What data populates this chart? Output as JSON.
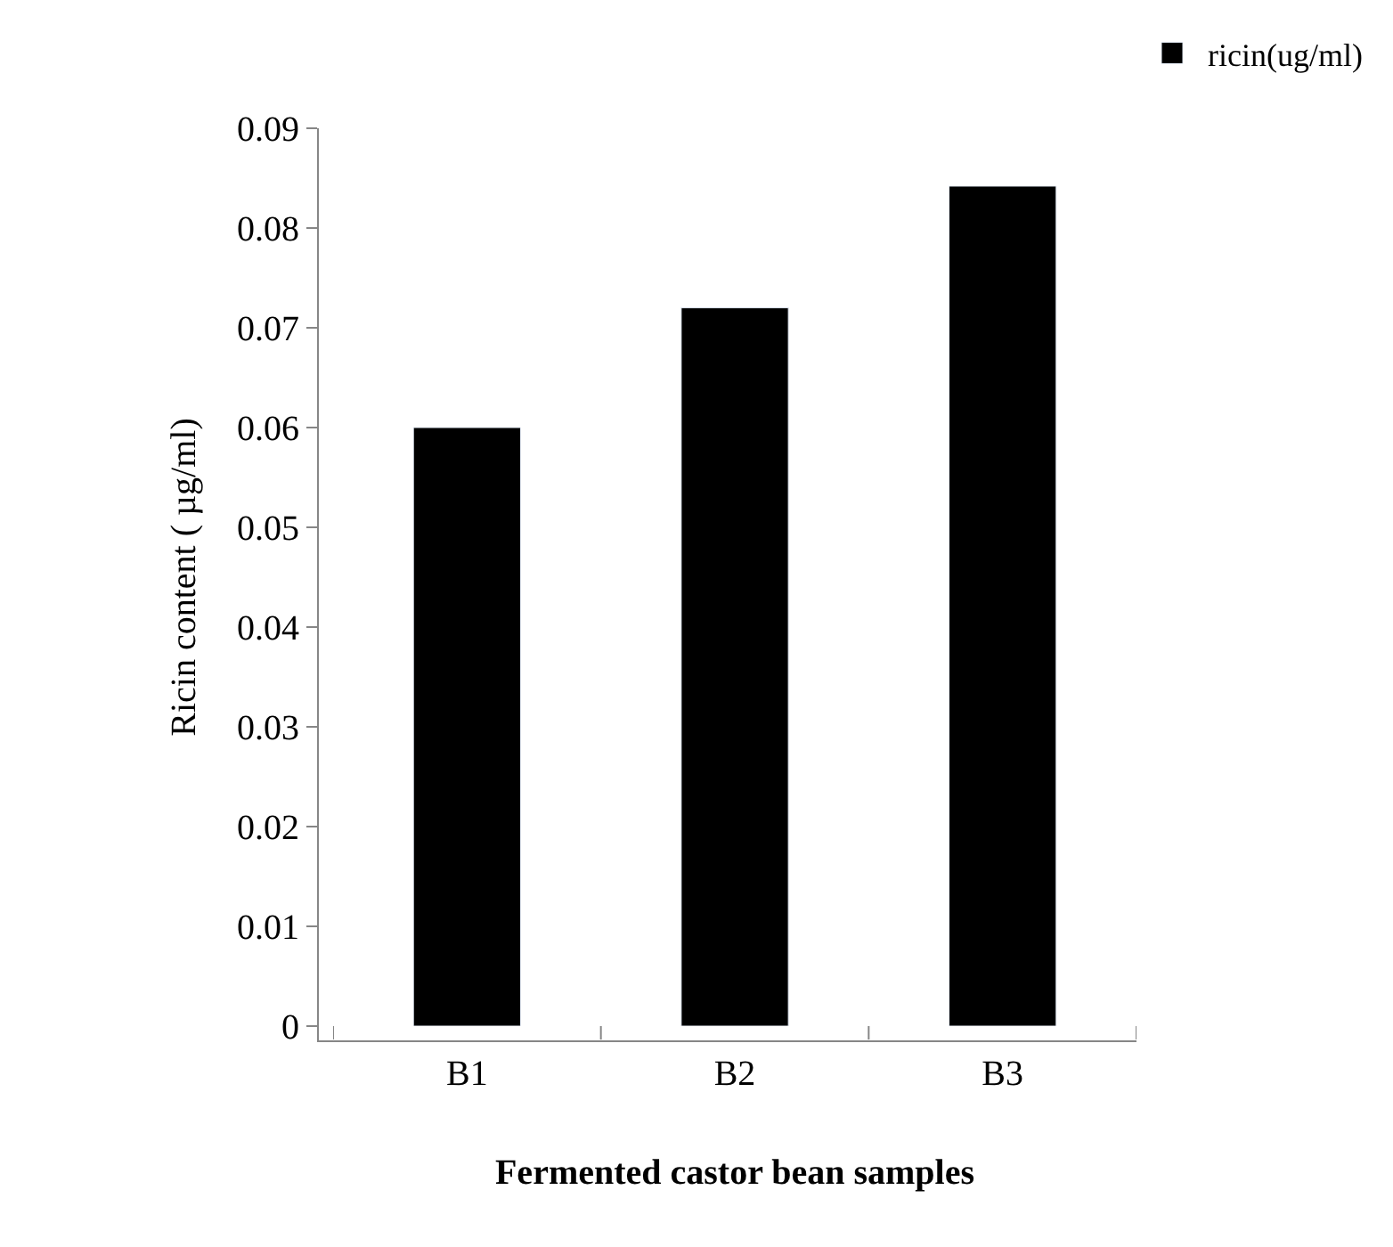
{
  "chart_data": {
    "type": "bar",
    "xlabel": "Fermented castor bean samples",
    "ylabel": "Ricin content ( µg/ml)",
    "categories": [
      "B1",
      "B2",
      "B3"
    ],
    "series": [
      {
        "name": "ricin(ug/ml)",
        "color": "#000000",
        "values": [
          0.06,
          0.072,
          0.0842
        ]
      }
    ],
    "ylim": [
      0,
      0.09
    ],
    "yticks": [
      0,
      0.01,
      0.02,
      0.03,
      0.04,
      0.05,
      0.06,
      0.07,
      0.08,
      0.09
    ],
    "legend": "top right"
  }
}
